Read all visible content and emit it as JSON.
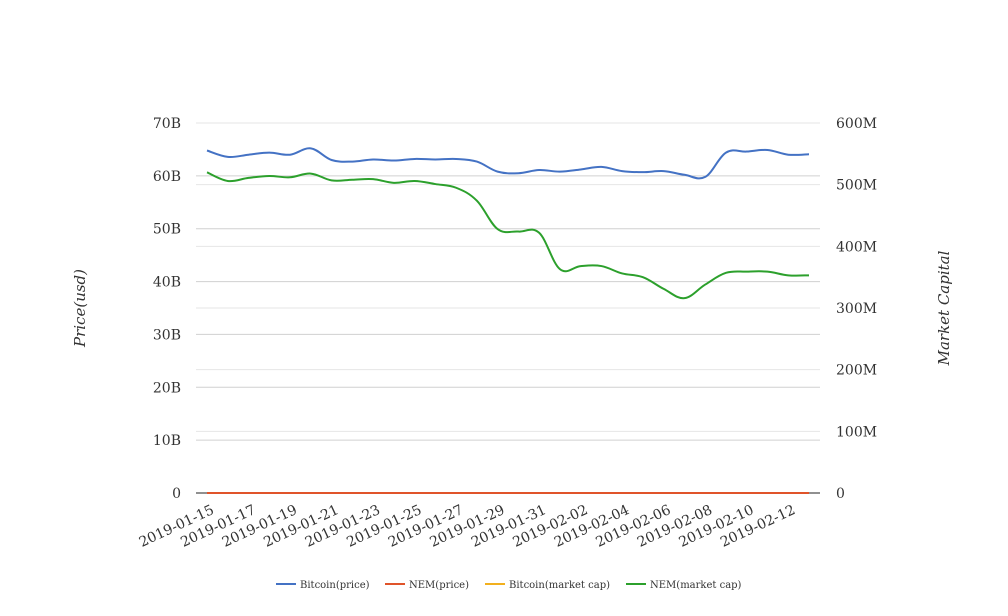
{
  "chart_data": {
    "type": "line",
    "title": "",
    "ylabel_left": "Price(usd)",
    "ylabel_right": "Market Capital",
    "x": [
      "2019-01-15",
      "2019-01-16",
      "2019-01-17",
      "2019-01-18",
      "2019-01-19",
      "2019-01-20",
      "2019-01-21",
      "2019-01-22",
      "2019-01-23",
      "2019-01-24",
      "2019-01-25",
      "2019-01-26",
      "2019-01-27",
      "2019-01-28",
      "2019-01-29",
      "2019-01-30",
      "2019-01-31",
      "2019-02-01",
      "2019-02-02",
      "2019-02-03",
      "2019-02-04",
      "2019-02-05",
      "2019-02-06",
      "2019-02-07",
      "2019-02-08",
      "2019-02-09",
      "2019-02-10",
      "2019-02-11",
      "2019-02-12",
      "2019-02-13"
    ],
    "x_tick_labels": [
      "2019-01-15",
      "2019-01-17",
      "2019-01-19",
      "2019-01-21",
      "2019-01-23",
      "2019-01-25",
      "2019-01-27",
      "2019-01-29",
      "2019-01-31",
      "2019-02-02",
      "2019-02-04",
      "2019-02-06",
      "2019-02-08",
      "2019-02-10",
      "2019-02-12"
    ],
    "y_left": {
      "ticks": [
        "0",
        "10B",
        "20B",
        "30B",
        "40B",
        "50B",
        "60B",
        "70B"
      ],
      "ylim": [
        0,
        70000000000
      ]
    },
    "y_right": {
      "ticks": [
        "0",
        "100M",
        "200M",
        "300M",
        "400M",
        "500M",
        "600M"
      ],
      "ylim": [
        0,
        600000000
      ]
    },
    "grid": true,
    "legend_position": "bottom",
    "series": [
      {
        "name": "Bitcoin(price)",
        "axis": "left",
        "color": "#4472c4",
        "values": [
          64800000000,
          63600000000,
          64000000000,
          64400000000,
          64000000000,
          65200000000,
          63000000000,
          62700000000,
          63100000000,
          62900000000,
          63200000000,
          63100000000,
          63200000000,
          62700000000,
          60800000000,
          60500000000,
          61100000000,
          60800000000,
          61200000000,
          61700000000,
          60900000000,
          60700000000,
          60900000000,
          60200000000,
          59800000000,
          64400000000,
          64600000000,
          64900000000,
          64000000000,
          64100000000
        ]
      },
      {
        "name": "NEM(price)",
        "axis": "left",
        "color": "#e0542a",
        "values": [
          0.06,
          0.06,
          0.06,
          0.06,
          0.06,
          0.06,
          0.06,
          0.06,
          0.06,
          0.06,
          0.06,
          0.06,
          0.06,
          0.06,
          0.05,
          0.05,
          0.05,
          0.04,
          0.04,
          0.04,
          0.04,
          0.04,
          0.04,
          0.03,
          0.04,
          0.04,
          0.04,
          0.04,
          0.04,
          0.04
        ]
      },
      {
        "name": "Bitcoin(market cap)",
        "axis": "left",
        "color": "#f2b01e",
        "values": [
          0,
          0,
          0,
          0,
          0,
          0,
          0,
          0,
          0,
          0,
          0,
          0,
          0,
          0,
          0,
          0,
          0,
          0,
          0,
          0,
          0,
          0,
          0,
          0,
          0,
          0,
          0,
          0,
          0,
          0
        ]
      },
      {
        "name": "NEM(market cap)",
        "axis": "right",
        "color": "#2ca02c",
        "values": [
          520000000,
          506000000,
          511000000,
          514000000,
          512000000,
          518000000,
          507000000,
          508000000,
          509000000,
          503000000,
          506000000,
          501000000,
          495000000,
          474000000,
          428000000,
          424000000,
          422000000,
          363000000,
          368000000,
          368000000,
          356000000,
          350000000,
          331000000,
          316000000,
          338000000,
          357000000,
          359000000,
          359000000,
          353000000,
          353000000
        ]
      }
    ]
  }
}
